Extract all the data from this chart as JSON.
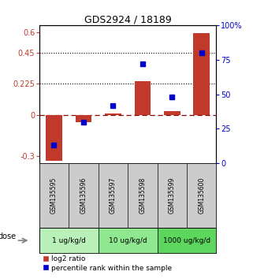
{
  "title": "GDS2924 / 18189",
  "samples": [
    "GSM135595",
    "GSM135596",
    "GSM135597",
    "GSM135598",
    "GSM135599",
    "GSM135600"
  ],
  "log2_ratio": [
    -0.33,
    -0.05,
    0.01,
    0.245,
    0.025,
    0.595
  ],
  "percentile_rank": [
    13,
    30,
    42,
    72,
    48,
    80
  ],
  "doses": [
    {
      "label": "1 ug/kg/d",
      "span": [
        0,
        1
      ]
    },
    {
      "label": "10 ug/kg/d",
      "span": [
        2,
        3
      ]
    },
    {
      "label": "1000 ug/kg/d",
      "span": [
        4,
        5
      ]
    }
  ],
  "bar_color": "#c0392b",
  "dot_color": "#0000cc",
  "ylim_left": [
    -0.35,
    0.65
  ],
  "ylim_right": [
    0,
    100
  ],
  "yticks_left": [
    -0.3,
    0,
    0.225,
    0.45,
    0.6
  ],
  "yticks_right": [
    0,
    25,
    50,
    75,
    100
  ],
  "hline_dotted": [
    0.225,
    0.45
  ],
  "hline_dashed": 0.0,
  "dose_label": "dose",
  "legend_log2": "log2 ratio",
  "legend_pct": "percentile rank within the sample",
  "bar_width": 0.55,
  "dose_colors": [
    "#b8f0b8",
    "#8fe88f",
    "#5cd65c"
  ],
  "background_color": "#ffffff",
  "plot_bg": "#ffffff",
  "xlabel_bg": "#cccccc"
}
